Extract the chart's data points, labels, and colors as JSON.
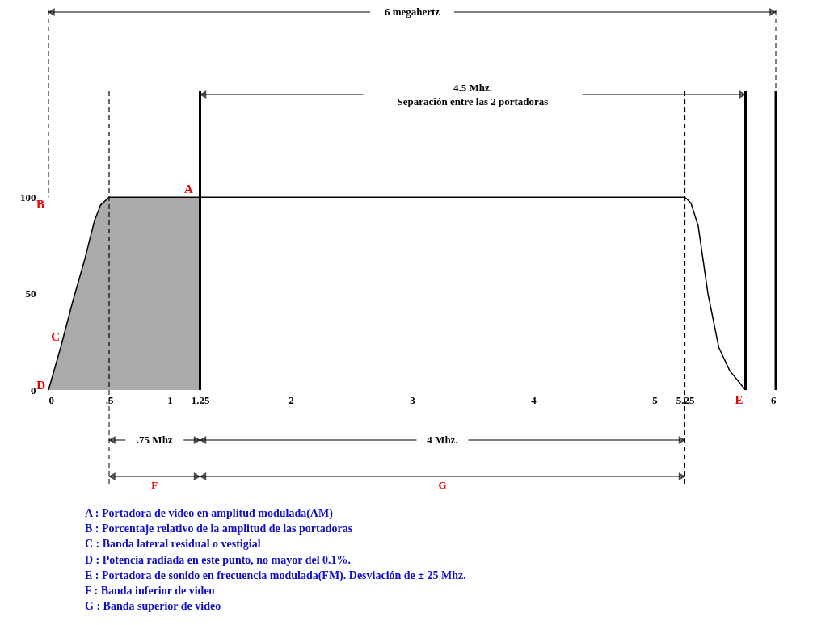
{
  "chart_data": {
    "type": "line",
    "series": [
      {
        "type": "area",
        "color": "#aaaaaa",
        "x": [
          0,
          0.1,
          0.2,
          0.3,
          0.38,
          0.43,
          0.5,
          1.25
        ],
        "values": [
          0,
          22,
          46,
          68,
          88,
          96,
          100,
          100
        ]
      },
      {
        "color": "#000000",
        "x": [
          0,
          0.1,
          0.2,
          0.3,
          0.38,
          0.43,
          0.5,
          1.25,
          5.25,
          5.3,
          5.36,
          5.44,
          5.53,
          5.62,
          5.75
        ],
        "values": [
          0,
          22,
          46,
          68,
          88,
          96,
          100,
          100,
          100,
          97,
          85,
          50,
          22,
          10,
          0
        ]
      }
    ],
    "xlim": [
      0,
      6
    ],
    "ylim": [
      0,
      155
    ],
    "xticks": [
      0,
      {
        "value": 0.5,
        "label": ".5"
      },
      1,
      1.25,
      2,
      3,
      4,
      5,
      5.25,
      6
    ],
    "yticks": [
      0,
      50,
      100
    ],
    "grid": false,
    "marker": "none",
    "line_style": "solid",
    "ref_lines": [
      {
        "axis": "x",
        "value": 0.5,
        "line_style": "dashed"
      },
      {
        "axis": "x",
        "value": 1.25,
        "line_style": "solid"
      },
      {
        "axis": "x",
        "value": 5.25,
        "line_style": "dashed"
      },
      {
        "axis": "x",
        "value": 5.75,
        "line_style": "solid"
      },
      {
        "axis": "x",
        "value": 6,
        "line_style": "solid"
      }
    ],
    "annotations": [
      "6 megahertz",
      "4.5 Mhz.\nSeparación entre las 2 portadoras",
      ".75 Mhz",
      "4 Mhz.",
      "F",
      "G",
      "A : Portadora de video en amplitud modulada(AM)",
      "B : Porcentaje relativo de la amplitud de las portadoras",
      "C : Banda lateral residual o vestigial",
      "D : Potencia radiada en este punto, no mayor del 0.1%.",
      "E : Portadora de sonido en frecuencia modulada(FM). Desviación de ± 25 Mhz.",
      "F : Banda inferior de video",
      "G : Banda superior de video",
      {
        "text": "A",
        "x": 1.25,
        "y": 100
      },
      "B",
      "C",
      {
        "text": "D",
        "x": 0,
        "y": 0
      },
      {
        "text": "E",
        "x": 5.75,
        "y": 0
      }
    ]
  }
}
